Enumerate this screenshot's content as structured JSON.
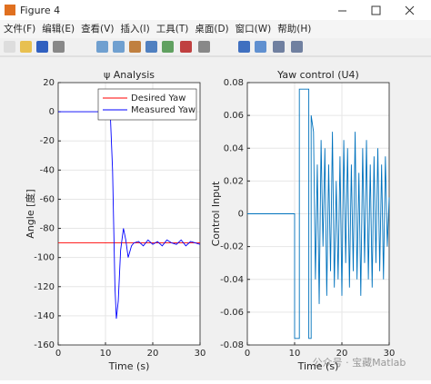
{
  "window": {
    "title": "Figure 4",
    "menu": [
      "文件(F)",
      "编辑(E)",
      "查看(V)",
      "插入(I)",
      "工具(T)",
      "桌面(D)",
      "窗口(W)",
      "帮助(H)"
    ]
  },
  "watermark": "公众号 · 宝藏Matlab",
  "chart_data": [
    {
      "type": "line",
      "title": "ψ Analysis",
      "xlabel": "Time (s)",
      "ylabel": "Angle [度]",
      "xlim": [
        0,
        30
      ],
      "ylim": [
        -160,
        20
      ],
      "xticks": [
        0,
        10,
        20,
        30
      ],
      "yticks": [
        -160,
        -140,
        -120,
        -100,
        -80,
        -60,
        -40,
        -20,
        0,
        20
      ],
      "grid": true,
      "legend": "upper right",
      "series": [
        {
          "name": "Desired Yaw",
          "color": "#ff0000",
          "x": [
            0,
            30
          ],
          "values": [
            -90,
            -90
          ]
        },
        {
          "name": "Measured Yaw",
          "color": "#0000ff",
          "x": [
            0,
            11,
            11.5,
            12,
            12.3,
            12.7,
            13.2,
            13.8,
            14.3,
            14.8,
            15.5,
            16,
            17,
            18,
            19,
            20,
            21,
            22,
            23,
            24,
            25,
            26,
            27,
            28,
            29,
            30
          ],
          "values": [
            0,
            0,
            -40,
            -120,
            -142,
            -130,
            -95,
            -80,
            -88,
            -100,
            -92,
            -90,
            -89,
            -92,
            -88,
            -91,
            -89,
            -92,
            -88,
            -90,
            -91,
            -88,
            -92,
            -89,
            -90,
            -91
          ]
        }
      ]
    },
    {
      "type": "line",
      "title": "Yaw control (U4)",
      "xlabel": "Time (s)",
      "ylabel": "Control Input",
      "xlim": [
        0,
        30
      ],
      "ylim": [
        -0.08,
        0.08
      ],
      "xticks": [
        0,
        10,
        20,
        30
      ],
      "yticks": [
        -0.08,
        -0.06,
        -0.04,
        -0.02,
        0,
        0.02,
        0.04,
        0.06,
        0.08
      ],
      "grid": true,
      "series": [
        {
          "name": "U4",
          "color": "#0072bd",
          "x": [
            0,
            10,
            10,
            11,
            11,
            13,
            13,
            13.5,
            13.5,
            14,
            14.4,
            14.8,
            15.2,
            15.6,
            16,
            16.4,
            16.8,
            17.2,
            17.6,
            18,
            18.4,
            18.8,
            19.2,
            19.6,
            20,
            20.4,
            20.8,
            21.2,
            21.6,
            22,
            22.4,
            22.8,
            23.2,
            23.6,
            24,
            24.4,
            24.8,
            25.2,
            25.6,
            26,
            26.4,
            26.8,
            27.2,
            27.6,
            28,
            28.4,
            28.8,
            29.2,
            29.6,
            30
          ],
          "values": [
            0,
            0,
            -0.076,
            -0.076,
            0.076,
            0.076,
            -0.076,
            -0.076,
            0.06,
            0.05,
            -0.04,
            0.03,
            -0.055,
            0.045,
            -0.02,
            0.04,
            -0.05,
            0.03,
            -0.035,
            0.05,
            -0.045,
            0.02,
            -0.04,
            0.035,
            -0.05,
            0.045,
            -0.03,
            0.04,
            -0.045,
            0.03,
            -0.035,
            0.05,
            -0.04,
            0.025,
            -0.05,
            0.04,
            -0.03,
            0.045,
            -0.04,
            0.03,
            -0.045,
            0.035,
            -0.03,
            0.04,
            -0.035,
            0.03,
            -0.04,
            0.035,
            -0.02,
            0.01
          ]
        }
      ]
    }
  ]
}
